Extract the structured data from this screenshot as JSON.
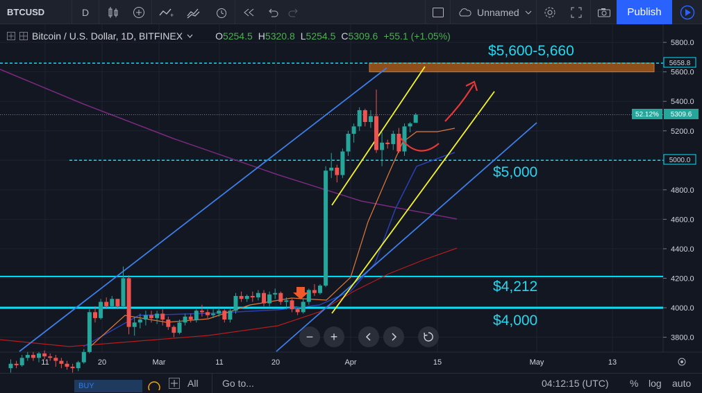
{
  "toolbar": {
    "symbol": "BTCUSD",
    "interval": "D",
    "layout_name": "Unnamed",
    "publish_label": "Publish"
  },
  "legend": {
    "title": "Bitcoin / U.S. Dollar, 1D, BITFINEX",
    "o_label": "O",
    "o": "5254.5",
    "h_label": "H",
    "h": "5320.8",
    "l_label": "L",
    "l": "5254.5",
    "c_label": "C",
    "c": "5309.6",
    "change": "+55.1 (+1.05%)"
  },
  "annotations": {
    "resistance": "$5,600-5,660",
    "level_5000": "$5,000",
    "level_4212": "$4,212",
    "level_4000": "$4,000"
  },
  "price_axis": {
    "badge_top": "5658.8",
    "badge_current": "5309.6",
    "badge_pct": "52.12%",
    "badge_5000": "5000.0"
  },
  "bottom": {
    "range_all": "All",
    "goto": "Go to...",
    "clock": "04:12:15 (UTC)",
    "pct": "%",
    "log": "log",
    "auto": "auto",
    "buy": "BUY"
  },
  "colors": {
    "bg": "#131722",
    "up": "#26a69a",
    "down": "#ef5350",
    "cyan": "#00e5ff",
    "yellow": "#f5f52a",
    "blue_line": "#3d7ee8",
    "label_cyan": "#26d7ee"
  },
  "chart_data": {
    "type": "candlestick",
    "yticks": [
      3800,
      4000,
      4200,
      4400,
      4600,
      4800,
      5000,
      5200,
      5400,
      5600,
      5800
    ],
    "xticks": [
      "11",
      "20",
      "Mar",
      "11",
      "20",
      "Apr",
      "15",
      "May",
      "13"
    ],
    "horizontal_levels": [
      4000,
      4212,
      5000,
      5658.8
    ],
    "resistance_zone": [
      5600,
      5660
    ],
    "candles": [
      [
        3590,
        3650,
        3560,
        3620
      ],
      [
        3620,
        3640,
        3590,
        3610
      ],
      [
        3610,
        3680,
        3600,
        3660
      ],
      [
        3660,
        3700,
        3640,
        3680
      ],
      [
        3680,
        3700,
        3640,
        3660
      ],
      [
        3660,
        3700,
        3630,
        3690
      ],
      [
        3690,
        3710,
        3650,
        3670
      ],
      [
        3670,
        3690,
        3640,
        3660
      ],
      [
        3660,
        3680,
        3600,
        3640
      ],
      [
        3640,
        3660,
        3590,
        3620
      ],
      [
        3620,
        3640,
        3580,
        3600
      ],
      [
        3600,
        3620,
        3560,
        3590
      ],
      [
        3590,
        3640,
        3570,
        3630
      ],
      [
        3630,
        3720,
        3620,
        3700
      ],
      [
        3700,
        3990,
        3690,
        3970
      ],
      [
        3970,
        4010,
        3900,
        3930
      ],
      [
        3930,
        4060,
        3920,
        4040
      ],
      [
        4040,
        4070,
        3990,
        4010
      ],
      [
        4010,
        4080,
        4000,
        4060
      ],
      [
        4060,
        4060,
        3990,
        4010
      ],
      [
        4010,
        4280,
        4000,
        4200
      ],
      [
        4200,
        4220,
        3820,
        3870
      ],
      [
        3870,
        3940,
        3810,
        3900
      ],
      [
        3900,
        3960,
        3860,
        3920
      ],
      [
        3920,
        3980,
        3880,
        3950
      ],
      [
        3950,
        3980,
        3900,
        3930
      ],
      [
        3930,
        3980,
        3890,
        3960
      ],
      [
        3960,
        3990,
        3880,
        3920
      ],
      [
        3920,
        3940,
        3850,
        3870
      ],
      [
        3870,
        3880,
        3800,
        3830
      ],
      [
        3830,
        3920,
        3820,
        3900
      ],
      [
        3900,
        3960,
        3880,
        3940
      ],
      [
        3940,
        3960,
        3900,
        3920
      ],
      [
        3920,
        3990,
        3900,
        3980
      ],
      [
        3980,
        4020,
        3940,
        3970
      ],
      [
        3970,
        3990,
        3930,
        3950
      ],
      [
        3950,
        3990,
        3930,
        3960
      ],
      [
        3960,
        4000,
        3940,
        3980
      ],
      [
        3980,
        3990,
        3900,
        3920
      ],
      [
        3920,
        4000,
        3900,
        3980
      ],
      [
        3980,
        4100,
        3960,
        4080
      ],
      [
        4080,
        4110,
        4040,
        4060
      ],
      [
        4060,
        4090,
        4040,
        4080
      ],
      [
        4080,
        4110,
        4040,
        4070
      ],
      [
        4070,
        4120,
        4050,
        4100
      ],
      [
        4100,
        4120,
        4010,
        4030
      ],
      [
        4030,
        4110,
        4010,
        4090
      ],
      [
        4090,
        4130,
        4060,
        4100
      ],
      [
        4100,
        4110,
        4020,
        4040
      ],
      [
        4040,
        4070,
        3990,
        4050
      ],
      [
        4050,
        4060,
        3970,
        3990
      ],
      [
        3990,
        4000,
        3950,
        3970
      ],
      [
        3970,
        4060,
        3960,
        4040
      ],
      [
        4040,
        4130,
        4020,
        4120
      ],
      [
        4120,
        4160,
        4080,
        4100
      ],
      [
        4100,
        4160,
        4090,
        4150
      ],
      [
        4150,
        4960,
        4140,
        4930
      ],
      [
        4930,
        5050,
        4880,
        4950
      ],
      [
        4950,
        4970,
        4850,
        4900
      ],
      [
        4900,
        5080,
        4880,
        5060
      ],
      [
        5060,
        5200,
        5030,
        5180
      ],
      [
        5180,
        5250,
        5120,
        5230
      ],
      [
        5230,
        5360,
        5200,
        5340
      ],
      [
        5340,
        5350,
        5230,
        5260
      ],
      [
        5260,
        5340,
        5220,
        5300
      ],
      [
        5300,
        5480,
        5050,
        5070
      ],
      [
        5070,
        5190,
        4960,
        5120
      ],
      [
        5120,
        5140,
        5080,
        5110
      ],
      [
        5110,
        5200,
        5070,
        5180
      ],
      [
        5180,
        5220,
        5050,
        5060
      ],
      [
        5060,
        5250,
        5030,
        5230
      ],
      [
        5230,
        5260,
        5190,
        5250
      ],
      [
        5254.5,
        5320.8,
        5254.5,
        5309.6
      ]
    ]
  }
}
